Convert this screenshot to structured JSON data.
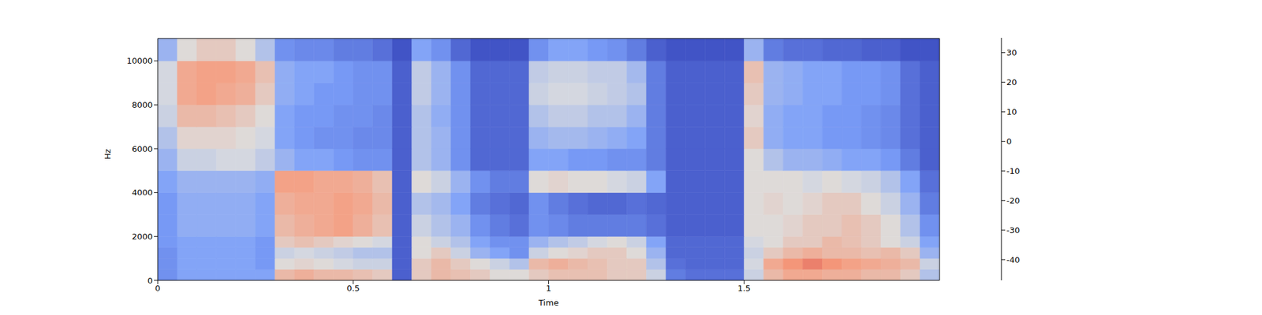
{
  "chart_data": {
    "type": "heatmap",
    "x_label": "Time",
    "y_label": "Hz",
    "xlim": [
      0,
      2
    ],
    "ylim": [
      0,
      11025
    ],
    "xticks": [
      0,
      0.5,
      1,
      1.5
    ],
    "yticks": [
      0,
      2000,
      4000,
      6000,
      8000,
      10000
    ],
    "x_bins": [
      0,
      0.05,
      0.1,
      0.15,
      0.2,
      0.25,
      0.3,
      0.35,
      0.4,
      0.45,
      0.5,
      0.55,
      0.6,
      0.65,
      0.7,
      0.75,
      0.8,
      0.85,
      0.9,
      0.95,
      1,
      1.05,
      1.1,
      1.15,
      1.2,
      1.25,
      1.3,
      1.35,
      1.4,
      1.45,
      1.5,
      1.55,
      1.6,
      1.65,
      1.7,
      1.75,
      1.8,
      1.85,
      1.9,
      1.95,
      2
    ],
    "y_bins": [
      0,
      500,
      1000,
      1500,
      2000,
      3000,
      4000,
      5000,
      6000,
      7000,
      8000,
      9000,
      10000,
      11025
    ],
    "cells": [
      [
        -30,
        -25,
        -25,
        -25,
        -25,
        -25,
        5,
        8,
        5,
        5,
        3,
        0,
        -42,
        0,
        5,
        3,
        0,
        -5,
        -5,
        0,
        3,
        3,
        3,
        0,
        0,
        -10,
        -35,
        -38,
        -38,
        -38,
        -10,
        5,
        10,
        10,
        8,
        8,
        5,
        5,
        0,
        -15
      ],
      [
        -30,
        -25,
        -25,
        -25,
        -25,
        -28,
        -5,
        -3,
        -5,
        -8,
        -10,
        -10,
        -42,
        0,
        5,
        0,
        -5,
        -10,
        -15,
        5,
        8,
        5,
        3,
        0,
        0,
        -15,
        -38,
        -40,
        -40,
        -40,
        -8,
        10,
        15,
        18,
        15,
        12,
        10,
        8,
        5,
        -10
      ],
      [
        -30,
        -25,
        -25,
        -25,
        -25,
        -28,
        -10,
        -8,
        -10,
        -12,
        -15,
        -15,
        -42,
        -5,
        0,
        -10,
        -20,
        -25,
        -30,
        -10,
        -5,
        -3,
        0,
        0,
        -5,
        -20,
        -40,
        -40,
        -40,
        -40,
        -10,
        0,
        5,
        8,
        5,
        5,
        3,
        5,
        0,
        -20
      ],
      [
        -28,
        -25,
        -25,
        -25,
        -25,
        -28,
        0,
        3,
        0,
        -3,
        -5,
        -8,
        -42,
        -5,
        -10,
        -15,
        -25,
        -30,
        -30,
        -20,
        -15,
        -12,
        -8,
        -5,
        -10,
        -25,
        -40,
        -40,
        -40,
        -40,
        -8,
        -5,
        0,
        0,
        5,
        3,
        0,
        -5,
        -10,
        -25
      ],
      [
        -28,
        -22,
        -22,
        -22,
        -22,
        -25,
        5,
        8,
        10,
        12,
        8,
        3,
        -42,
        -10,
        -15,
        -20,
        -30,
        -35,
        -38,
        -30,
        -32,
        -35,
        -35,
        -35,
        -35,
        -38,
        -42,
        -42,
        -42,
        -42,
        -5,
        -5,
        -3,
        0,
        0,
        3,
        0,
        -5,
        -15,
        -30
      ],
      [
        -28,
        -22,
        -22,
        -22,
        -22,
        -25,
        8,
        10,
        10,
        12,
        10,
        5,
        -42,
        -15,
        -18,
        -25,
        -35,
        -38,
        -40,
        -30,
        -35,
        -38,
        -40,
        -40,
        -38,
        -40,
        -42,
        -42,
        -42,
        -42,
        -5,
        -3,
        -5,
        -3,
        0,
        0,
        -5,
        -10,
        -20,
        -35
      ],
      [
        -25,
        -20,
        -20,
        -20,
        -20,
        -22,
        12,
        12,
        10,
        10,
        8,
        3,
        -42,
        -5,
        -10,
        -20,
        -30,
        -35,
        -35,
        -5,
        -3,
        -5,
        -5,
        -8,
        -10,
        -25,
        -42,
        -42,
        -42,
        -42,
        -5,
        -5,
        -5,
        -8,
        -5,
        -8,
        -10,
        -15,
        -25,
        -38
      ],
      [
        -20,
        -10,
        -10,
        -8,
        -8,
        -12,
        -20,
        -25,
        -25,
        -28,
        -30,
        -30,
        -42,
        -15,
        -20,
        -30,
        -40,
        -40,
        -40,
        -25,
        -25,
        -28,
        -28,
        -30,
        -30,
        -35,
        -42,
        -42,
        -42,
        -42,
        -5,
        -15,
        -20,
        -20,
        -22,
        -25,
        -25,
        -28,
        -35,
        -42
      ],
      [
        -15,
        -3,
        -3,
        -3,
        -5,
        -8,
        -25,
        -28,
        -30,
        -30,
        -32,
        -32,
        -42,
        -15,
        -20,
        -30,
        -40,
        -40,
        -40,
        -20,
        -18,
        -18,
        -20,
        -22,
        -25,
        -35,
        -42,
        -42,
        -42,
        -42,
        0,
        -22,
        -25,
        -25,
        -28,
        -28,
        -30,
        -32,
        -38,
        -42
      ],
      [
        -10,
        5,
        5,
        3,
        0,
        -5,
        -25,
        -28,
        -28,
        -30,
        -30,
        -32,
        -42,
        -15,
        -22,
        -30,
        -40,
        -40,
        -40,
        -15,
        -12,
        -12,
        -15,
        -15,
        -20,
        -35,
        -42,
        -42,
        -42,
        -42,
        -3,
        -22,
        -25,
        -25,
        -28,
        -28,
        -30,
        -32,
        -38,
        -42
      ],
      [
        -8,
        10,
        12,
        10,
        8,
        0,
        -22,
        -25,
        -28,
        -28,
        -30,
        -30,
        -42,
        -12,
        -20,
        -30,
        -40,
        -40,
        -40,
        -10,
        -8,
        -8,
        -10,
        -12,
        -15,
        -35,
        -42,
        -42,
        -42,
        -42,
        0,
        -20,
        -22,
        -25,
        -25,
        -28,
        -28,
        -30,
        -38,
        -42
      ],
      [
        -8,
        10,
        12,
        12,
        10,
        3,
        -22,
        -25,
        -25,
        -28,
        -30,
        -30,
        -42,
        -12,
        -20,
        -30,
        -40,
        -40,
        -40,
        -12,
        -10,
        -10,
        -12,
        -12,
        -18,
        -35,
        -42,
        -42,
        -42,
        -42,
        3,
        -20,
        -22,
        -25,
        -25,
        -28,
        -28,
        -30,
        -38,
        -42
      ],
      [
        -20,
        -5,
        0,
        0,
        -5,
        -15,
        -30,
        -32,
        -32,
        -35,
        -35,
        -38,
        -45,
        -25,
        -30,
        -40,
        -45,
        -45,
        -45,
        -30,
        -25,
        -25,
        -28,
        -30,
        -35,
        -42,
        -45,
        -45,
        -45,
        -45,
        -20,
        -35,
        -38,
        -38,
        -40,
        -40,
        -42,
        -42,
        -45,
        -45
      ]
    ],
    "colorbar": {
      "range": [
        -47,
        35
      ],
      "ticks": [
        -40,
        -30,
        -20,
        -10,
        0,
        10,
        20,
        30
      ]
    }
  }
}
